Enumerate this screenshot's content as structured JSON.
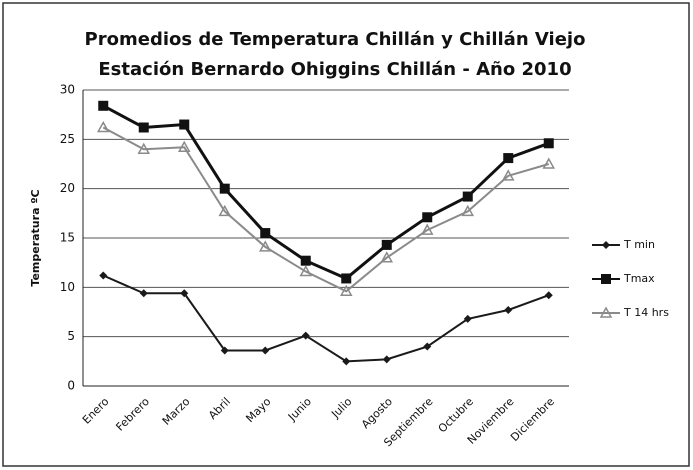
{
  "chart_data": {
    "type": "line",
    "title": [
      "Promedios de  Temperatura Chillán y Chillán Viejo",
      "Estación Bernardo Ohiggins Chillán - Año 2010"
    ],
    "y_label": "Temperatura ºC",
    "categories": [
      "Enero",
      "Febrero",
      "Marzo",
      "Abril",
      "Mayo",
      "Junio",
      "Julio",
      "Agosto",
      "Septiembre",
      "Octubre",
      "Noviembre",
      "Diciembre"
    ],
    "series": [
      {
        "name": "T min",
        "color": "#1a1a1a",
        "marker": "diamond",
        "values": [
          11.2,
          9.4,
          9.4,
          3.6,
          3.6,
          5.1,
          2.5,
          2.7,
          4.0,
          6.8,
          7.7,
          9.2
        ]
      },
      {
        "name": "Tmax",
        "color": "#111111",
        "marker": "square",
        "values": [
          28.4,
          26.2,
          26.5,
          20.0,
          15.5,
          12.7,
          10.9,
          14.3,
          17.1,
          19.2,
          23.1,
          24.6
        ]
      },
      {
        "name": "T 14 hrs",
        "color": "#8a8a8a",
        "marker": "triangle",
        "values": [
          26.2,
          24.0,
          24.2,
          17.7,
          14.1,
          11.6,
          9.6,
          13.0,
          15.8,
          17.7,
          21.3,
          22.5
        ]
      }
    ],
    "ylim": [
      0,
      30
    ],
    "yticks": [
      0,
      5,
      10,
      15,
      20,
      25,
      30
    ],
    "grid": true,
    "legend": "right"
  }
}
